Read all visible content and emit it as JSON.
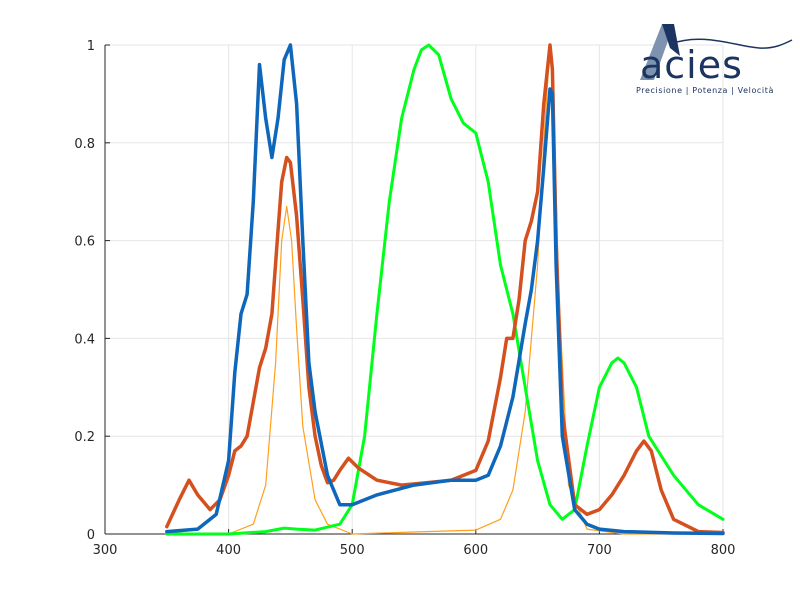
{
  "logo": {
    "word": "acies",
    "tagline": "Precisione | Potenza | Velocità",
    "colors": {
      "navy": "#1c3560",
      "steel": "#7e93b0"
    }
  },
  "chart_data": {
    "type": "line",
    "title": "",
    "xlabel": "",
    "ylabel": "",
    "xlim": [
      300,
      800
    ],
    "ylim": [
      0,
      1
    ],
    "x_ticks": [
      300,
      400,
      500,
      600,
      700,
      800
    ],
    "y_ticks": [
      0,
      0.2,
      0.4,
      0.6,
      0.8,
      1
    ],
    "y_tick_labels": [
      "0",
      "0.2",
      "0.4",
      "0.6",
      "0.8",
      "1"
    ],
    "grid": true,
    "series": [
      {
        "color": "#ff9f1c",
        "width": 1.2,
        "x": [
          350,
          400,
          420,
          430,
          438,
          443,
          447,
          451,
          455,
          460,
          470,
          480,
          500,
          550,
          600,
          620,
          630,
          640,
          650,
          655,
          660,
          663,
          667,
          675,
          690,
          720,
          800
        ],
        "y": [
          0.0,
          0.0,
          0.02,
          0.1,
          0.35,
          0.6,
          0.67,
          0.6,
          0.42,
          0.22,
          0.07,
          0.02,
          0.0,
          0.004,
          0.008,
          0.03,
          0.09,
          0.25,
          0.55,
          0.8,
          1.0,
          0.9,
          0.5,
          0.1,
          0.01,
          0.0,
          0.0
        ]
      },
      {
        "color": "#00ff1a",
        "width": 3,
        "x": [
          350,
          400,
          430,
          445,
          455,
          470,
          490,
          500,
          510,
          520,
          530,
          540,
          550,
          556,
          562,
          570,
          580,
          590,
          600,
          610,
          620,
          630,
          640,
          650,
          660,
          670,
          680,
          690,
          700,
          710,
          715,
          720,
          730,
          740,
          760,
          780,
          800
        ],
        "y": [
          0.0,
          0.0,
          0.005,
          0.012,
          0.01,
          0.008,
          0.02,
          0.06,
          0.2,
          0.45,
          0.68,
          0.85,
          0.95,
          0.99,
          1.0,
          0.98,
          0.89,
          0.84,
          0.82,
          0.72,
          0.55,
          0.45,
          0.3,
          0.15,
          0.06,
          0.03,
          0.05,
          0.18,
          0.3,
          0.35,
          0.36,
          0.35,
          0.3,
          0.2,
          0.12,
          0.06,
          0.03
        ]
      },
      {
        "color": "#d4501f",
        "width": 3.5,
        "x": [
          350,
          360,
          368,
          375,
          385,
          393,
          400,
          405,
          410,
          415,
          420,
          425,
          430,
          435,
          440,
          443,
          447,
          450,
          455,
          460,
          465,
          470,
          475,
          480,
          485,
          490,
          497,
          505,
          520,
          540,
          560,
          580,
          600,
          610,
          620,
          625,
          630,
          635,
          640,
          645,
          650,
          655,
          660,
          662,
          665,
          670,
          680,
          690,
          700,
          710,
          720,
          730,
          736,
          742,
          750,
          760,
          780,
          800
        ],
        "y": [
          0.015,
          0.07,
          0.11,
          0.08,
          0.05,
          0.07,
          0.12,
          0.17,
          0.18,
          0.2,
          0.27,
          0.34,
          0.38,
          0.45,
          0.62,
          0.72,
          0.77,
          0.76,
          0.65,
          0.48,
          0.3,
          0.2,
          0.14,
          0.105,
          0.11,
          0.13,
          0.155,
          0.135,
          0.11,
          0.1,
          0.105,
          0.11,
          0.13,
          0.19,
          0.32,
          0.4,
          0.4,
          0.48,
          0.6,
          0.64,
          0.7,
          0.88,
          1.0,
          0.95,
          0.6,
          0.25,
          0.06,
          0.04,
          0.05,
          0.08,
          0.12,
          0.17,
          0.19,
          0.17,
          0.09,
          0.03,
          0.005,
          0.003
        ]
      },
      {
        "color": "#0f67bb",
        "width": 3.5,
        "x": [
          350,
          375,
          390,
          400,
          405,
          410,
          415,
          420,
          425,
          430,
          435,
          440,
          445,
          450,
          455,
          460,
          465,
          470,
          480,
          490,
          500,
          520,
          550,
          580,
          600,
          610,
          620,
          630,
          640,
          645,
          650,
          655,
          660,
          662,
          665,
          670,
          680,
          690,
          700,
          720,
          760,
          800
        ],
        "y": [
          0.005,
          0.01,
          0.04,
          0.15,
          0.33,
          0.45,
          0.49,
          0.68,
          0.96,
          0.85,
          0.77,
          0.85,
          0.97,
          1.0,
          0.88,
          0.6,
          0.35,
          0.25,
          0.12,
          0.06,
          0.06,
          0.08,
          0.1,
          0.11,
          0.11,
          0.12,
          0.18,
          0.28,
          0.43,
          0.5,
          0.6,
          0.75,
          0.91,
          0.9,
          0.55,
          0.2,
          0.05,
          0.02,
          0.01,
          0.005,
          0.002,
          0.001
        ]
      }
    ]
  }
}
